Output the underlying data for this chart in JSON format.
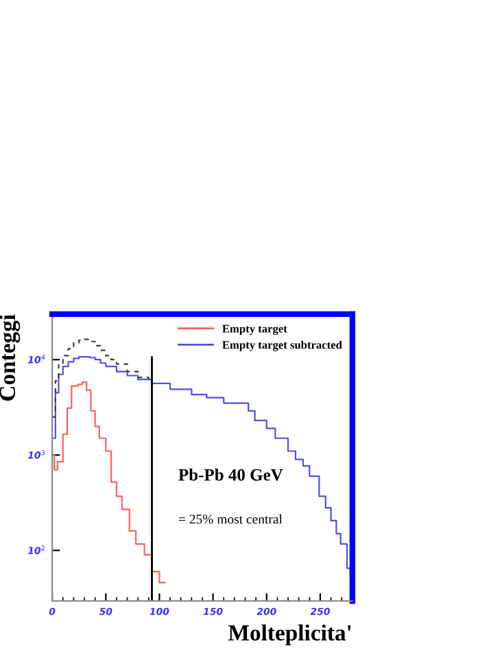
{
  "chart_data": {
    "type": "step",
    "xlabel": "Molteplicita'",
    "ylabel": "Conteggi",
    "series": [
      {
        "name": "Empty target",
        "color": "#ff6060",
        "x": [
          0,
          2,
          5,
          10,
          14,
          18,
          24,
          28,
          32,
          36,
          40,
          44,
          50,
          55,
          60,
          65,
          72,
          78,
          86,
          93,
          100,
          105
        ],
        "values": [
          1000,
          700,
          850,
          1650,
          3100,
          5300,
          5500,
          5800,
          4800,
          2900,
          2000,
          1500,
          1100,
          520,
          370,
          270,
          160,
          117,
          90,
          60,
          46,
          46
        ]
      },
      {
        "name": "Empty target subtracted",
        "color": "#5050e0",
        "x": [
          0,
          3,
          6,
          10,
          15,
          20,
          25,
          30,
          35,
          40,
          45,
          50,
          60,
          70,
          80,
          93,
          110,
          130,
          144,
          160,
          183,
          189,
          200,
          208,
          220,
          227,
          234,
          240,
          249,
          255,
          260,
          265,
          269,
          275,
          278,
          280
        ],
        "values": [
          1500,
          4500,
          7000,
          8500,
          9500,
          10300,
          10700,
          10700,
          10500,
          10000,
          9200,
          8500,
          7500,
          6800,
          6200,
          5640,
          4900,
          4300,
          4000,
          3500,
          2900,
          2300,
          1900,
          1500,
          1100,
          900,
          770,
          600,
          370,
          280,
          205,
          150,
          117,
          65,
          54,
          54
        ]
      },
      {
        "color": "#404040",
        "line_style": "dashed",
        "x": [
          0,
          3,
          6,
          10,
          15,
          20,
          25,
          30,
          35,
          40,
          45,
          50,
          55,
          60,
          70,
          80,
          90
        ],
        "values": [
          2500,
          6000,
          9000,
          11000,
          13000,
          15000,
          16000,
          16300,
          15500,
          14000,
          12500,
          11000,
          10000,
          9000,
          7500,
          6500,
          5900
        ]
      }
    ],
    "ref_lines": [
      {
        "axis": "x",
        "value": 93,
        "color": "#000000"
      }
    ],
    "annotations": [
      "Pb-Pb 40 GeV",
      "= 25% most central"
    ],
    "log": "y",
    "xlim": [
      0,
      280
    ],
    "ylim": [
      29.5,
      30000
    ],
    "xticks": [
      0,
      50,
      100,
      150,
      200,
      250
    ],
    "yticks": [
      {
        "value": 100,
        "label": "10$^{2}$"
      },
      {
        "value": 1000,
        "label": "10$^{3}$"
      },
      {
        "value": 10000,
        "label": "10$^{4}$"
      }
    ],
    "legend": "top right",
    "grid": false
  }
}
